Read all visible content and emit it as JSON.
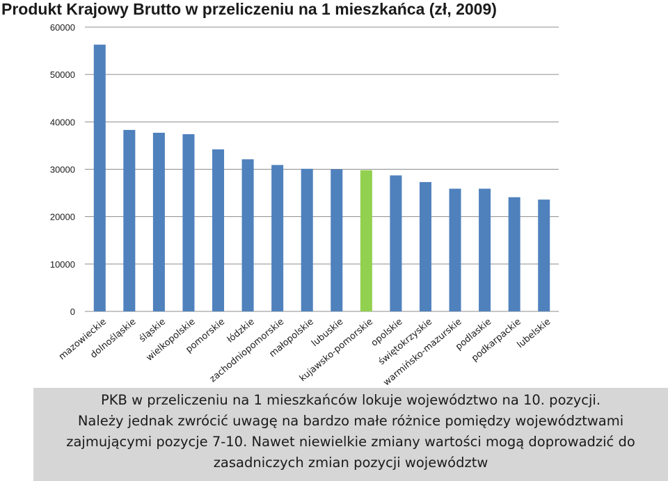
{
  "title": "Produkt Krajowy Brutto w przeliczeniu na 1 mieszkańca (zł, 2009)",
  "caption": {
    "line1": "PKB w przeliczeniu na 1 mieszkańców lokuje województwo na 10. pozycji.",
    "line2": "Należy jednak zwrócić uwagę na bardzo małe różnice pomiędzy województwami",
    "line3": "zajmującymi pozycje 7-10. Nawet niewielkie zmiany wartości mogą doprowadzić do",
    "line4": "zasadniczych zmian pozycji województw"
  },
  "chart_data": {
    "type": "bar",
    "title": "Produkt Krajowy Brutto w przeliczeniu na 1 mieszkańca (zł, 2009)",
    "categories": [
      "mazowieckie",
      "dolnośląskie",
      "śląskie",
      "wielkopolskie",
      "pomorskie",
      "łódzkie",
      "zachodniopomorskie",
      "małopolskie",
      "lubuskie",
      "kujawsko-pomorskie",
      "opolskie",
      "świętokrzyskie",
      "warmińsko-mazurskie",
      "podlaskie",
      "podkarpackie",
      "lubelskie"
    ],
    "values": [
      56300,
      38300,
      37700,
      37400,
      34200,
      32100,
      30900,
      30100,
      30000,
      29800,
      28700,
      27300,
      25900,
      25900,
      24100,
      23600
    ],
    "highlight_index": 9,
    "colors": {
      "bar": "#4f81bd",
      "highlight": "#92d050",
      "grid": "#8c8c8c"
    },
    "ylim": [
      0,
      60000
    ],
    "yticks": [
      0,
      10000,
      20000,
      30000,
      40000,
      50000,
      60000
    ],
    "grid": true,
    "legend": "none",
    "xlabel": "",
    "ylabel": ""
  }
}
